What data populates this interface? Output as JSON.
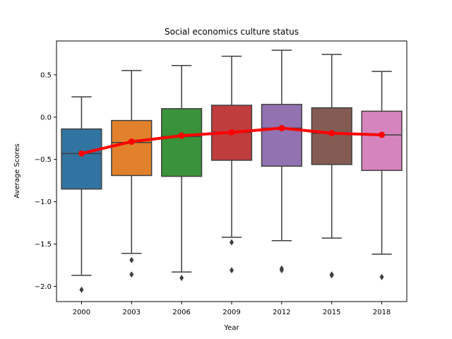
{
  "chart_data": {
    "type": "box",
    "title": "Social economics culture status",
    "xlabel": "Year",
    "ylabel": "Average Scores",
    "ylim": [
      -2.18,
      0.9
    ],
    "yticks": [
      0.5,
      0.0,
      -0.5,
      -1.0,
      -1.5,
      -2.0
    ],
    "ytick_labels": [
      "0.5",
      "0.0",
      "−0.5",
      "−1.0",
      "−1.5",
      "−2.0"
    ],
    "grid": false,
    "categories": [
      "2000",
      "2003",
      "2006",
      "2009",
      "2012",
      "2015",
      "2018"
    ],
    "boxes": [
      {
        "year": "2000",
        "color": "#3274a1",
        "whisker_low": -1.87,
        "q1": -0.85,
        "median": -0.43,
        "q3": -0.14,
        "whisker_high": 0.24,
        "outliers": [
          -2.04
        ]
      },
      {
        "year": "2003",
        "color": "#e1812c",
        "whisker_low": -1.61,
        "q1": -0.69,
        "median": -0.3,
        "q3": -0.04,
        "whisker_high": 0.55,
        "outliers": [
          -1.69,
          -1.86
        ]
      },
      {
        "year": "2006",
        "color": "#3a923a",
        "whisker_low": -1.83,
        "q1": -0.7,
        "median": -0.23,
        "q3": 0.1,
        "whisker_high": 0.61,
        "outliers": [
          -1.9
        ]
      },
      {
        "year": "2009",
        "color": "#c03d3e",
        "whisker_low": -1.42,
        "q1": -0.51,
        "median": -0.18,
        "q3": 0.14,
        "whisker_high": 0.72,
        "outliers": [
          -1.48,
          -1.81
        ]
      },
      {
        "year": "2012",
        "color": "#9372b2",
        "whisker_low": -1.46,
        "q1": -0.58,
        "median": -0.13,
        "q3": 0.15,
        "whisker_high": 0.79,
        "outliers": [
          -1.79,
          -1.81
        ]
      },
      {
        "year": "2015",
        "color": "#845b53",
        "whisker_low": -1.43,
        "q1": -0.56,
        "median": -0.19,
        "q3": 0.11,
        "whisker_high": 0.74,
        "outliers": [
          -1.86,
          -1.87
        ]
      },
      {
        "year": "2018",
        "color": "#d684bd",
        "whisker_low": -1.62,
        "q1": -0.63,
        "median": -0.21,
        "q3": 0.07,
        "whisker_high": 0.54,
        "outliers": [
          -1.89
        ]
      }
    ],
    "mean_line": {
      "color": "#ff0000",
      "values": [
        -0.43,
        -0.29,
        -0.22,
        -0.18,
        -0.13,
        -0.19,
        -0.21
      ]
    }
  }
}
